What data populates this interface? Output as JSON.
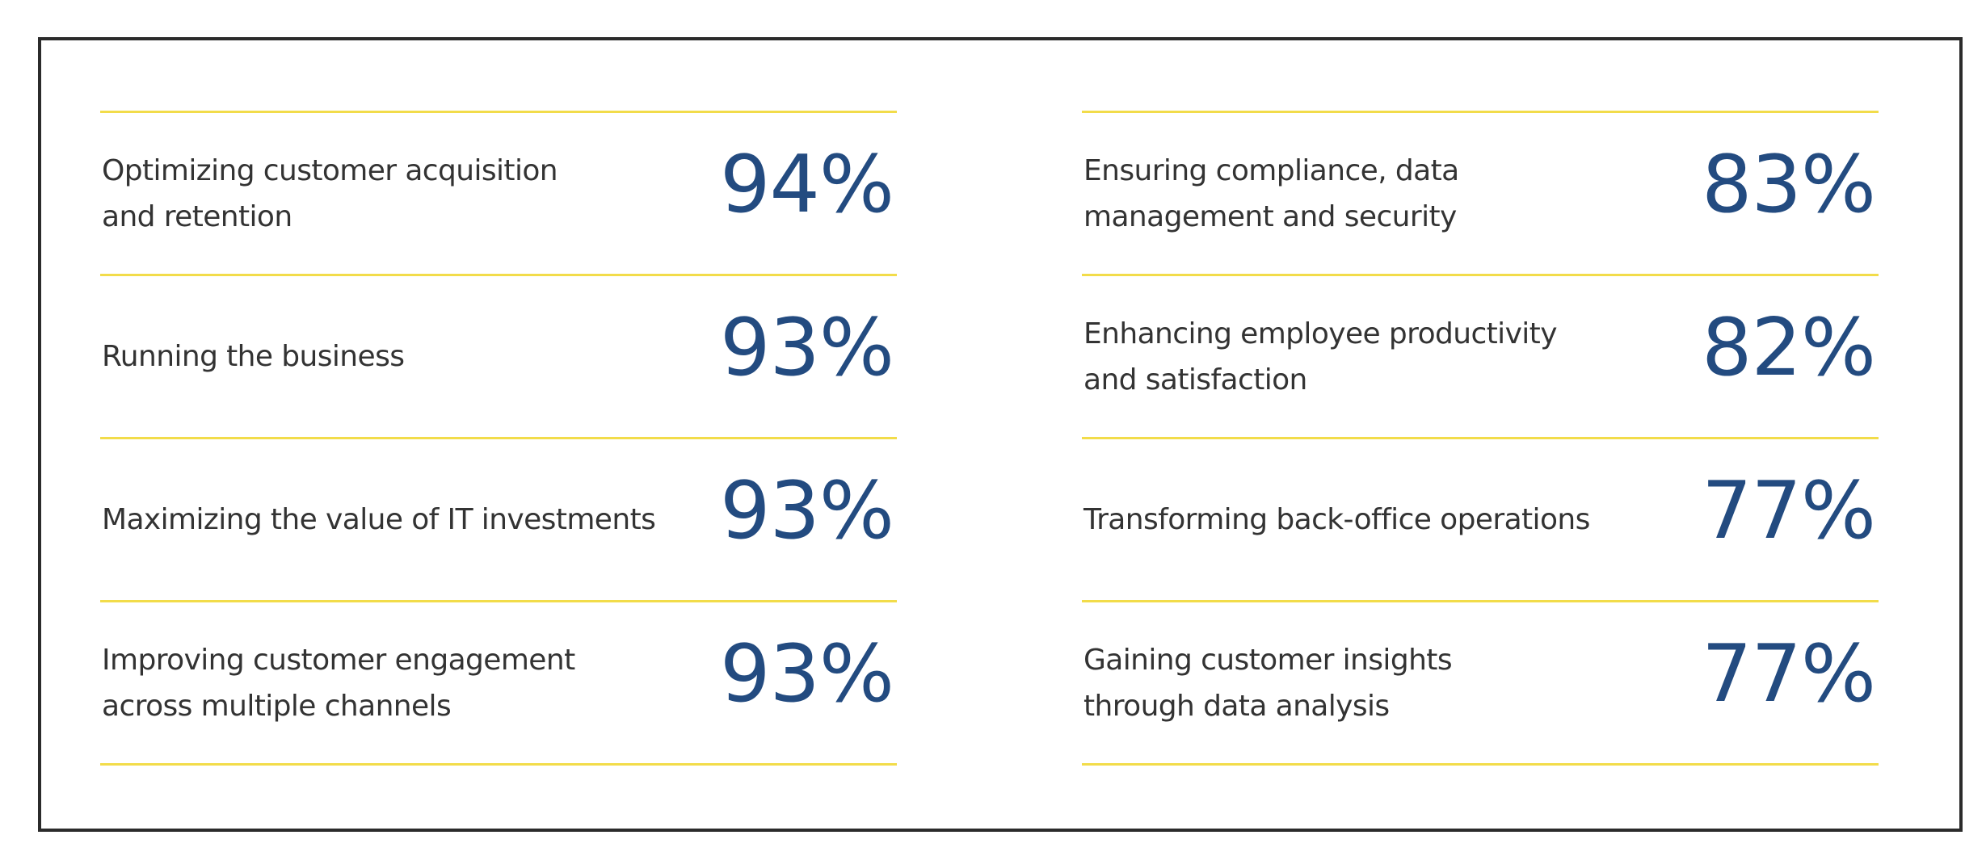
{
  "left_column": [
    {
      "label": "Optimizing customer acquisition and retention",
      "value": "94%"
    },
    {
      "label": "Running the business",
      "value": "93%"
    },
    {
      "label": "Maximizing the value of IT investments",
      "value": "93%"
    },
    {
      "label": "Improving customer engagement across multiple channels",
      "value": "93%"
    }
  ],
  "right_column": [
    {
      "label": "Ensuring compliance, data management and security",
      "value": "83%"
    },
    {
      "label": "Enhancing employee productivity and satisfaction",
      "value": "82%"
    },
    {
      "label": "Transforming back-office operations",
      "value": "77%"
    },
    {
      "label": "Gaining customer insights through data analysis",
      "value": "77%"
    }
  ],
  "colors": {
    "value_text": "#234b80",
    "label_text": "#333333",
    "divider": "#f2dc4a",
    "frame_border": "#2b2b2b"
  }
}
